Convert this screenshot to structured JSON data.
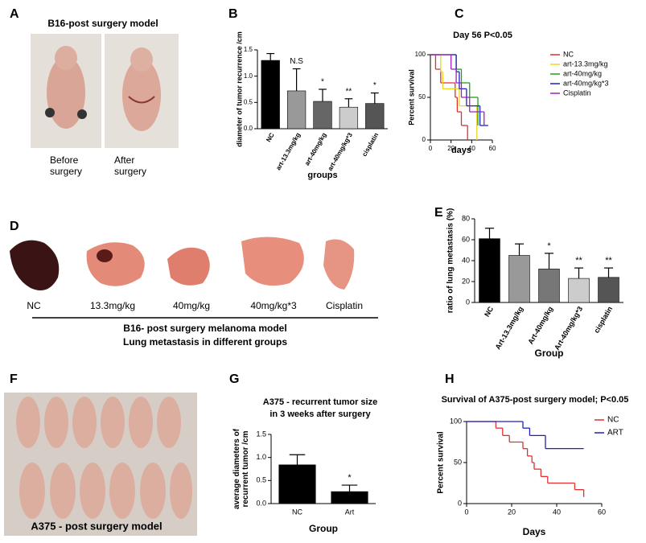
{
  "panel_a": {
    "label": "A",
    "title": "B16-post surgery model",
    "captions": [
      [
        "Before",
        "surgery"
      ],
      [
        "After",
        "surgery"
      ]
    ]
  },
  "panel_d": {
    "label": "D",
    "samples": [
      "NC",
      "13.3mg/kg",
      "40mg/kg",
      "40mg/kg*3",
      "Cisplatin"
    ],
    "caption": [
      "B16- post surgery melanoma model",
      "Lung metastasis in different groups"
    ]
  },
  "panel_f": {
    "label": "F",
    "caption": "A375 - post surgery model"
  },
  "chart_data": [
    {
      "type": "bar",
      "label": "B",
      "ylabel": [
        "diameter of tumor recurrence /cm"
      ],
      "xlabel": "groups",
      "categories": [
        "NC",
        "art-13.3mg/kg",
        "art-40mg/kg",
        "art-40mg/kg*3",
        "cisplatin"
      ],
      "values": [
        1.3,
        0.72,
        0.52,
        0.41,
        0.48
      ],
      "errors": [
        0.13,
        0.42,
        0.23,
        0.16,
        0.2
      ],
      "annotations": [
        null,
        "N.S",
        "*",
        "**",
        "*"
      ],
      "colors": [
        "#000000",
        "#999999",
        "#666666",
        "#cccccc",
        "#555555"
      ],
      "ylim": [
        0,
        1.5
      ],
      "yticks": [
        {
          "value": 0,
          "label": "0.0"
        },
        0.5,
        {
          "value": 1,
          "label": "1.0"
        },
        1.5
      ]
    },
    {
      "type": "line",
      "step": true,
      "label": "C",
      "title": "Day 56   P<0.05",
      "xlabel": "days",
      "ylabel": [
        "Percent survival"
      ],
      "xlim": [
        0,
        60
      ],
      "xticks": [
        0,
        20,
        40,
        60
      ],
      "ylim": [
        0,
        100
      ],
      "yticks": [
        0,
        50,
        100
      ],
      "series": [
        {
          "name": "NC",
          "color": "#e03030",
          "x": [
            0,
            5,
            10,
            24,
            26,
            30,
            36
          ],
          "values": [
            100,
            83,
            67,
            50,
            33,
            17,
            0
          ]
        },
        {
          "name": "art-13.3mg/kg",
          "color": "#e8d820",
          "x": [
            0,
            10,
            12,
            28,
            45
          ],
          "values": [
            100,
            80,
            60,
            40,
            0
          ]
        },
        {
          "name": "art-40mg/kg",
          "color": "#20a020",
          "x": [
            0,
            25,
            30,
            38,
            46
          ],
          "values": [
            100,
            83,
            67,
            50,
            17
          ]
        },
        {
          "name": "art-40mg/kg*3",
          "color": "#2020c0",
          "x": [
            0,
            25,
            28,
            35,
            48,
            56
          ],
          "values": [
            100,
            80,
            60,
            40,
            17,
            17
          ]
        },
        {
          "name": "Cisplatin",
          "color": "#a020c0",
          "x": [
            0,
            20,
            25,
            30,
            38,
            52
          ],
          "values": [
            100,
            83,
            67,
            50,
            33,
            17
          ]
        }
      ]
    },
    {
      "type": "bar",
      "label": "E",
      "ylabel": [
        "ratio of lung metastasis (%)"
      ],
      "xlabel": "Group",
      "categories": [
        "NC",
        "Art-13.3mg/kg",
        "Art-40mg/kg",
        "Art-40mg/kg*3",
        "cisplatin"
      ],
      "values": [
        61,
        45,
        32,
        23,
        24
      ],
      "errors": [
        10,
        11,
        15,
        10,
        9
      ],
      "annotations": [
        null,
        null,
        "*",
        "**",
        "**"
      ],
      "colors": [
        "#000000",
        "#999999",
        "#777777",
        "#cccccc",
        "#555555"
      ],
      "ylim": [
        0,
        80
      ],
      "yticks": [
        0,
        20,
        40,
        60,
        80
      ]
    },
    {
      "type": "bar",
      "label": "G",
      "title": [
        "A375 - recurrent tumor size",
        "in 3 weeks after surgery"
      ],
      "ylabel": [
        "average diameters of",
        "recurrent tumor /cm"
      ],
      "xlabel": "Group",
      "categories": [
        "NC",
        "Art"
      ],
      "values": [
        0.84,
        0.26
      ],
      "errors": [
        0.22,
        0.14
      ],
      "annotations": [
        null,
        "*"
      ],
      "colors": [
        "#000000",
        "#000000"
      ],
      "ylim": [
        0,
        1.5
      ],
      "yticks": [
        {
          "value": 0,
          "label": "0.0"
        },
        0.5,
        {
          "value": 1,
          "label": "1.0"
        },
        1.5
      ]
    },
    {
      "type": "line",
      "step": true,
      "label": "H",
      "title": "Survival of A375-post surgery model; P<0.05",
      "xlabel": "Days",
      "ylabel": [
        "Percent survival"
      ],
      "xlim": [
        0,
        60
      ],
      "xticks": [
        0,
        20,
        40,
        60
      ],
      "ylim": [
        0,
        100
      ],
      "yticks": [
        0,
        50,
        100
      ],
      "series": [
        {
          "name": "NC",
          "color": "#e03030",
          "x": [
            0,
            13,
            16,
            19,
            25,
            27,
            29,
            30,
            33,
            36,
            48,
            52
          ],
          "values": [
            100,
            92,
            83,
            75,
            67,
            58,
            50,
            42,
            33,
            25,
            17,
            8
          ]
        },
        {
          "name": "ART",
          "color": "#2020c0",
          "x": [
            0,
            25,
            28,
            35,
            52
          ],
          "values": [
            100,
            92,
            83,
            67,
            67
          ]
        }
      ]
    }
  ]
}
